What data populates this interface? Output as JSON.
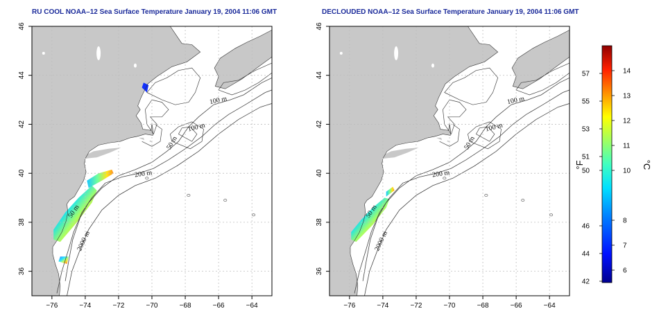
{
  "panels": [
    {
      "title": "RU COOL NOAA–12 Sea Surface Temperature January 19, 2004 11:06 GMT",
      "contour_labels": [
        "100 m",
        "100 m",
        "50 m",
        "200 m",
        "50 m",
        "2000 m"
      ]
    },
    {
      "title": "DECLOUDED NOAA–12 Sea Surface Temperature January 19, 2004 11:06 GMT",
      "contour_labels": [
        "100 m",
        "100 m",
        "50 m",
        "200 m",
        "50 m",
        "2000 m"
      ]
    }
  ],
  "axes": {
    "lon_ticks": [
      "−76",
      "−74",
      "−72",
      "−70",
      "−68",
      "−66",
      "−64"
    ],
    "lat_ticks": [
      "36",
      "38",
      "40",
      "42",
      "44",
      "46"
    ]
  },
  "colorbar": {
    "fahrenheit_label": "°F",
    "celsius_label": "°C",
    "fahrenheit_ticks": [
      "42",
      "44",
      "46",
      "50",
      "51",
      "53",
      "55",
      "57"
    ],
    "celsius_ticks": [
      "6",
      "7",
      "8",
      "10",
      "11",
      "12",
      "13",
      "14"
    ]
  },
  "colors": {
    "land": "#c8c8c8",
    "title": "#1a2a9a",
    "grid": "#bdbdbd"
  }
}
